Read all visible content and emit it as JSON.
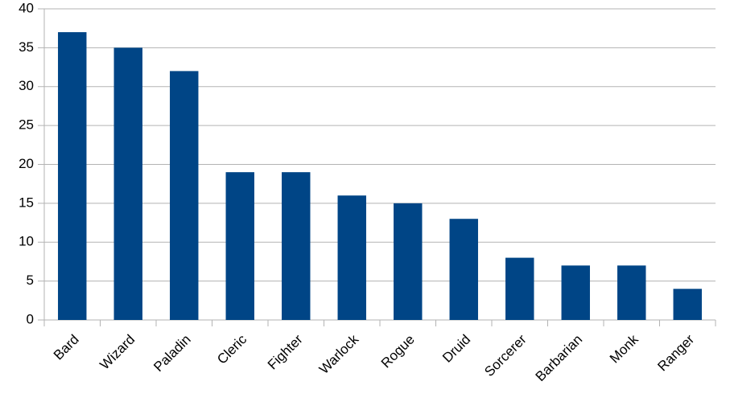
{
  "chart_data": {
    "type": "bar",
    "categories": [
      "Bard",
      "Wizard",
      "Paladin",
      "Cleric",
      "Fighter",
      "Warlock",
      "Rogue",
      "Druid",
      "Sorcerer",
      "Barbarian",
      "Monk",
      "Ranger"
    ],
    "values": [
      37,
      35,
      32,
      19,
      19,
      16,
      15,
      13,
      8,
      7,
      7,
      4
    ],
    "color": "#004586",
    "ylim": [
      0,
      40
    ],
    "yticks": [
      0,
      5,
      10,
      15,
      20,
      25,
      30,
      35,
      40
    ],
    "grid": true
  }
}
